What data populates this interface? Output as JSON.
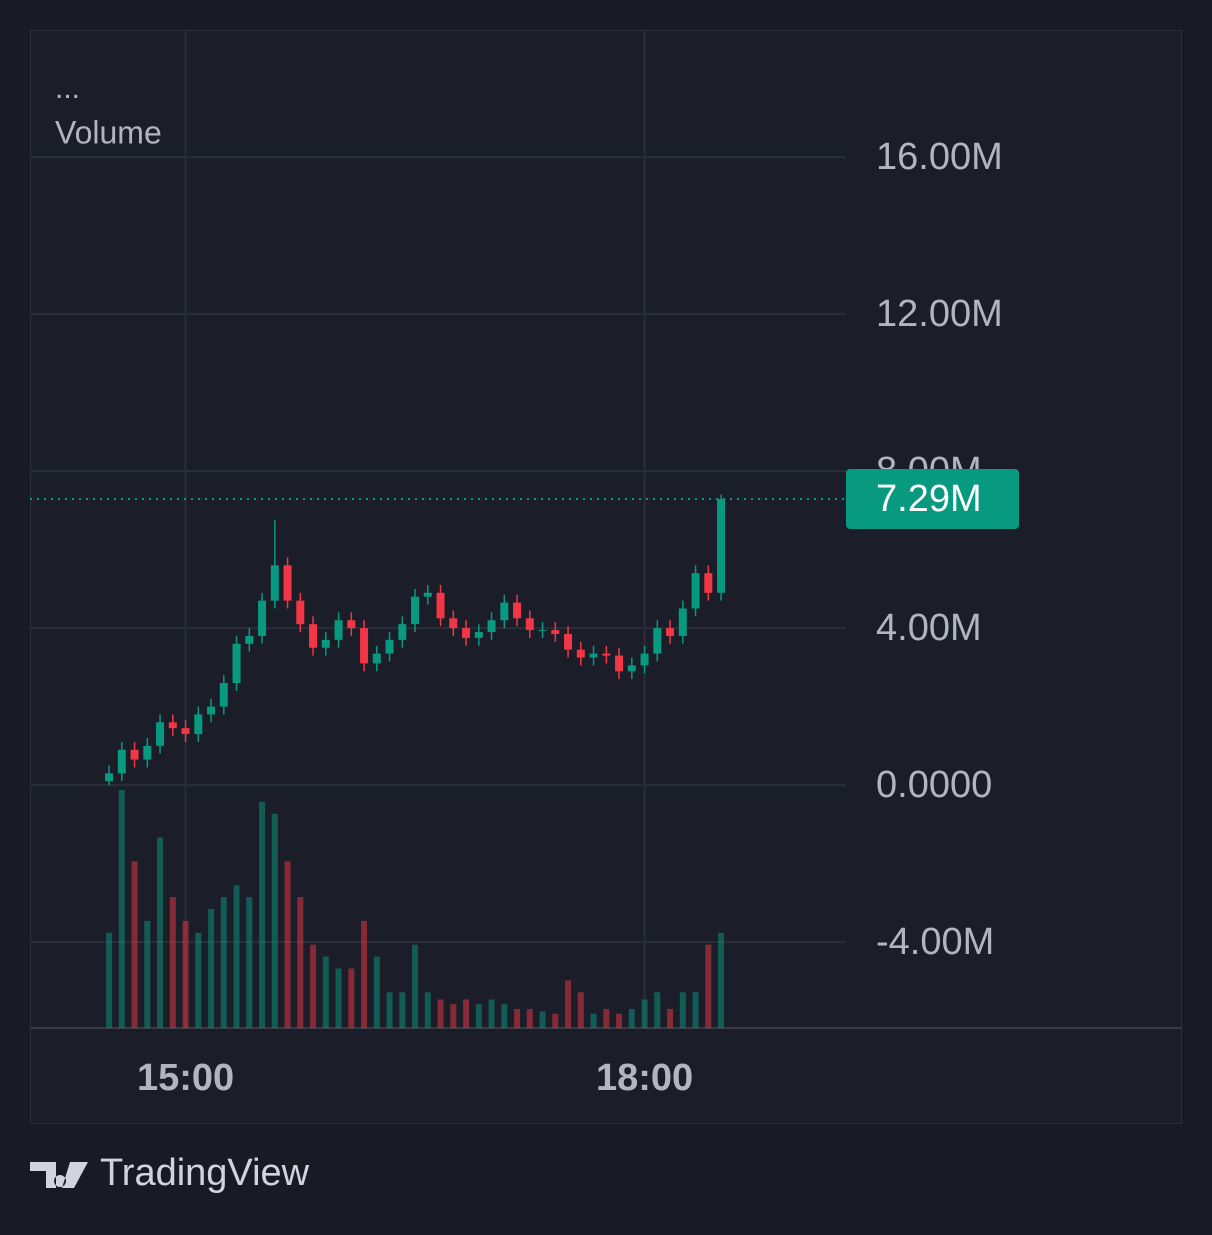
{
  "chart_data": {
    "type": "candlestick",
    "legend_text": "...",
    "x": [
      "14:30",
      "14:35",
      "14:40",
      "14:45",
      "14:50",
      "14:55",
      "15:00",
      "15:05",
      "15:10",
      "15:15",
      "15:20",
      "15:25",
      "15:30",
      "15:35",
      "15:40",
      "15:45",
      "15:50",
      "15:55",
      "16:00",
      "16:05",
      "16:10",
      "16:15",
      "16:20",
      "16:25",
      "16:30",
      "16:35",
      "16:40",
      "16:45",
      "16:50",
      "16:55",
      "17:00",
      "17:05",
      "17:10",
      "17:15",
      "17:20",
      "17:25",
      "17:30",
      "17:35",
      "17:40",
      "17:45",
      "17:50",
      "17:55",
      "18:00",
      "18:05",
      "18:10",
      "18:15",
      "18:20",
      "18:25",
      "18:30"
    ],
    "open": [
      0.1,
      0.3,
      0.9,
      0.65,
      1.0,
      1.6,
      1.45,
      1.3,
      1.8,
      2.0,
      2.6,
      3.6,
      3.8,
      4.7,
      5.6,
      4.7,
      4.1,
      3.5,
      3.7,
      4.2,
      4.0,
      3.1,
      3.35,
      3.7,
      4.1,
      4.8,
      4.9,
      4.25,
      4.0,
      3.75,
      3.9,
      4.2,
      4.65,
      4.25,
      3.95,
      3.95,
      3.85,
      3.45,
      3.25,
      3.35,
      3.3,
      2.9,
      3.05,
      3.35,
      4.0,
      3.8,
      4.5,
      5.4,
      4.9
    ],
    "high": [
      0.5,
      1.1,
      1.1,
      1.2,
      1.8,
      1.8,
      1.65,
      2.0,
      2.2,
      2.8,
      3.8,
      4.0,
      4.9,
      6.75,
      5.8,
      4.9,
      4.3,
      3.9,
      4.4,
      4.4,
      4.2,
      3.55,
      3.9,
      4.3,
      5.0,
      5.1,
      5.1,
      4.45,
      4.2,
      4.1,
      4.4,
      4.85,
      4.85,
      4.45,
      4.15,
      4.15,
      4.05,
      3.65,
      3.55,
      3.55,
      3.5,
      3.25,
      3.55,
      4.2,
      4.2,
      4.7,
      5.6,
      5.6,
      7.4
    ],
    "low": [
      0.0,
      0.1,
      0.45,
      0.45,
      0.8,
      1.25,
      1.1,
      1.1,
      1.6,
      1.8,
      2.4,
      3.4,
      3.6,
      4.5,
      4.5,
      3.9,
      3.3,
      3.3,
      3.5,
      3.8,
      2.9,
      2.9,
      3.15,
      3.5,
      3.9,
      4.6,
      4.05,
      3.8,
      3.55,
      3.55,
      3.7,
      4.0,
      4.05,
      3.75,
      3.75,
      3.65,
      3.25,
      3.05,
      3.05,
      3.1,
      2.7,
      2.7,
      2.85,
      3.15,
      3.6,
      3.6,
      4.3,
      4.7,
      4.7
    ],
    "close": [
      0.3,
      0.9,
      0.65,
      1.0,
      1.6,
      1.45,
      1.3,
      1.8,
      2.0,
      2.6,
      3.6,
      3.8,
      4.7,
      5.6,
      4.7,
      4.1,
      3.5,
      3.7,
      4.2,
      4.0,
      3.1,
      3.35,
      3.7,
      4.1,
      4.8,
      4.9,
      4.25,
      4.0,
      3.75,
      3.9,
      4.2,
      4.65,
      4.25,
      3.95,
      3.95,
      3.85,
      3.45,
      3.25,
      3.35,
      3.3,
      2.9,
      3.05,
      3.35,
      4.0,
      3.8,
      4.5,
      5.4,
      4.9,
      7.29
    ],
    "up_color": "#089981",
    "down_color": "#f23645",
    "volume": {
      "label": "Volume",
      "vlim": [
        0,
        100
      ],
      "values": [
        40,
        100,
        70,
        45,
        80,
        55,
        45,
        40,
        50,
        55,
        60,
        55,
        95,
        90,
        70,
        55,
        35,
        30,
        25,
        25,
        45,
        30,
        15,
        15,
        35,
        15,
        12,
        10,
        12,
        10,
        12,
        10,
        8,
        8,
        7,
        6,
        20,
        15,
        6,
        8,
        6,
        8,
        12,
        15,
        8,
        15,
        15,
        35,
        40
      ]
    },
    "ylim": [
      -6.19,
      19.24
    ],
    "yticks": [
      {
        "value": -4,
        "label": "-4.00M"
      },
      {
        "value": 0,
        "label": "0.0000"
      },
      {
        "value": 4,
        "label": "4.00M"
      },
      {
        "value": 8,
        "label": "8.00M"
      },
      {
        "value": 12,
        "label": "12.00M"
      },
      {
        "value": 16,
        "label": "16.00M"
      }
    ],
    "xlim": [
      "13:59",
      "19:19"
    ],
    "xticks": [
      "15:00",
      "18:00"
    ],
    "grid": true,
    "last_price": {
      "value": 7.29,
      "label": "7.29M",
      "color": "#089981"
    }
  },
  "branding": "TradingView"
}
